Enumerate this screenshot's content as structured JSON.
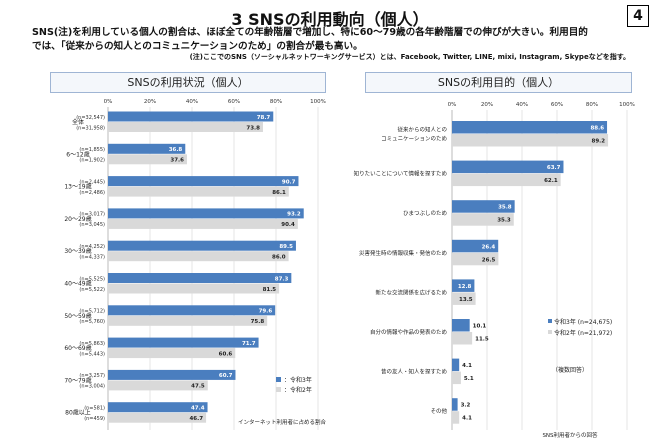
{
  "header": {
    "title": "3 SNSの利用動向（個人）",
    "page_number": "4",
    "lead1": "SNS(注)を利用している個人の割合は、ほぼ全ての年齢階層で増加し、特に60～79歳の各年齢階層での伸びが大きい。利用目的",
    "lead2": "では、「従来からの知人とのコミュニケーションのため」の割合が最も高い。",
    "note": "(注)ここでのSNS（ソーシャルネットワーキングサービス）とは、Facebook, Twitter, LINE, mixi, Instagram, Skypeなどを指す。"
  },
  "colors": {
    "r3": "#4a7ebf",
    "r2": "#d9d9d9"
  },
  "chart_data": [
    {
      "type": "bar",
      "orientation": "horizontal",
      "title": "SNSの利用状況（個人）",
      "xlim": [
        0,
        100
      ],
      "ticks": [
        "0%",
        "20%",
        "40%",
        "60%",
        "80%",
        "100%"
      ],
      "grid": true,
      "categories": [
        "全体",
        "6～12歳",
        "13～19歳",
        "20～29歳",
        "30～39歳",
        "40～49歳",
        "50～59歳",
        "60～69歳",
        "70～79歳",
        "80歳以上"
      ],
      "n_r3": [
        "(n=32,547)",
        "(n=1,855)",
        "(n=2,445)",
        "(n=3,017)",
        "(n=4,252)",
        "(n=5,525)",
        "(n=5,712)",
        "(n=5,863)",
        "(n=3,257)",
        "(n=581)"
      ],
      "n_r2": [
        "(n=31,958)",
        "(n=1,902)",
        "(n=2,486)",
        "(n=3,045)",
        "(n=4,337)",
        "(n=5,522)",
        "(n=5,760)",
        "(n=5,443)",
        "(n=3,004)",
        "(n=459)"
      ],
      "series": [
        {
          "name": "：令和3年",
          "values": [
            78.7,
            36.8,
            90.7,
            93.2,
            89.5,
            87.3,
            79.6,
            71.7,
            60.7,
            47.4
          ]
        },
        {
          "name": "：令和2年",
          "values": [
            73.8,
            37.6,
            86.1,
            90.4,
            86.0,
            81.5,
            75.8,
            60.6,
            47.5,
            46.7
          ]
        }
      ],
      "legend": "bottom-right",
      "footnote": "インターネット利用者に占める割合"
    },
    {
      "type": "bar",
      "orientation": "horizontal",
      "title": "SNSの利用目的（個人）",
      "xlim": [
        0,
        100
      ],
      "ticks": [
        "0%",
        "20%",
        "40%",
        "60%",
        "80%",
        "100%"
      ],
      "grid": true,
      "categories": [
        [
          "従来からの知人との",
          "コミュニケーションのため"
        ],
        [
          "知りたいことについて情報を探すため"
        ],
        [
          "ひまつぶしのため"
        ],
        [
          "災害発生時の情報収集・発信のため"
        ],
        [
          "新たな交流関係を広げるため"
        ],
        [
          "自分の情報や作品の発表のため"
        ],
        [
          "昔の友人・知人を探すため"
        ],
        [
          "その他"
        ]
      ],
      "series": [
        {
          "name": "令和3年 (n=24,675)",
          "values": [
            88.6,
            63.7,
            35.8,
            26.4,
            12.8,
            10.1,
            4.1,
            3.2
          ]
        },
        {
          "name": "令和2年 (n=21,972)",
          "values": [
            89.2,
            62.1,
            35.3,
            26.5,
            13.5,
            11.5,
            5.1,
            4.1
          ]
        }
      ],
      "legend": "right",
      "annotation": "（複数回答）",
      "footnote": "SNS利用者からの回答"
    }
  ]
}
